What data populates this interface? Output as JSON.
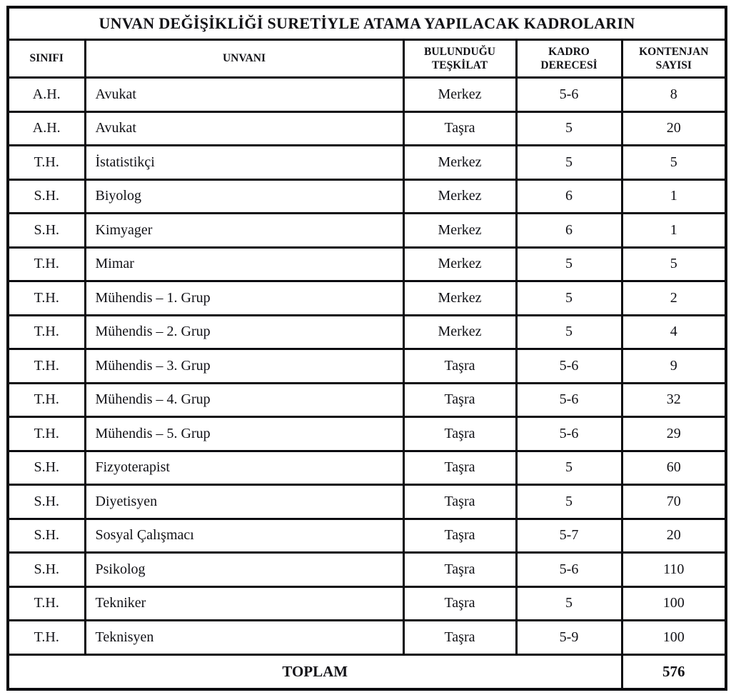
{
  "table": {
    "title": "UNVAN DEĞİŞİKLİĞİ SURETİYLE ATAMA YAPILACAK KADROLARIN",
    "columns": [
      "SINIFI",
      "UNVANI",
      "BULUNDUĞU\nTEŞKİLAT",
      "KADRO\nDERECESİ",
      "KONTENJAN\nSAYISI"
    ],
    "rows": [
      {
        "sinif": "A.H.",
        "unvan": "Avukat",
        "teskilat": "Merkez",
        "derece": "5-6",
        "kontenjan": "8"
      },
      {
        "sinif": "A.H.",
        "unvan": "Avukat",
        "teskilat": "Taşra",
        "derece": "5",
        "kontenjan": "20"
      },
      {
        "sinif": "T.H.",
        "unvan": "İstatistikçi",
        "teskilat": "Merkez",
        "derece": "5",
        "kontenjan": "5"
      },
      {
        "sinif": "S.H.",
        "unvan": "Biyolog",
        "teskilat": "Merkez",
        "derece": "6",
        "kontenjan": "1"
      },
      {
        "sinif": "S.H.",
        "unvan": "Kimyager",
        "teskilat": "Merkez",
        "derece": "6",
        "kontenjan": "1"
      },
      {
        "sinif": "T.H.",
        "unvan": "Mimar",
        "teskilat": "Merkez",
        "derece": "5",
        "kontenjan": "5"
      },
      {
        "sinif": "T.H.",
        "unvan": "Mühendis – 1. Grup",
        "teskilat": "Merkez",
        "derece": "5",
        "kontenjan": "2"
      },
      {
        "sinif": "T.H.",
        "unvan": "Mühendis – 2. Grup",
        "teskilat": "Merkez",
        "derece": "5",
        "kontenjan": "4"
      },
      {
        "sinif": "T.H.",
        "unvan": "Mühendis – 3. Grup",
        "teskilat": "Taşra",
        "derece": "5-6",
        "kontenjan": "9"
      },
      {
        "sinif": "T.H.",
        "unvan": "Mühendis – 4. Grup",
        "teskilat": "Taşra",
        "derece": "5-6",
        "kontenjan": "32"
      },
      {
        "sinif": "T.H.",
        "unvan": "Mühendis – 5. Grup",
        "teskilat": "Taşra",
        "derece": "5-6",
        "kontenjan": "29"
      },
      {
        "sinif": "S.H.",
        "unvan": "Fizyoterapist",
        "teskilat": "Taşra",
        "derece": "5",
        "kontenjan": "60"
      },
      {
        "sinif": "S.H.",
        "unvan": "Diyetisyen",
        "teskilat": "Taşra",
        "derece": "5",
        "kontenjan": "70"
      },
      {
        "sinif": "S.H.",
        "unvan": "Sosyal Çalışmacı",
        "teskilat": "Taşra",
        "derece": "5-7",
        "kontenjan": "20"
      },
      {
        "sinif": "S.H.",
        "unvan": "Psikolog",
        "teskilat": "Taşra",
        "derece": "5-6",
        "kontenjan": "110"
      },
      {
        "sinif": "T.H.",
        "unvan": "Tekniker",
        "teskilat": "Taşra",
        "derece": "5",
        "kontenjan": "100"
      },
      {
        "sinif": "T.H.",
        "unvan": "Teknisyen",
        "teskilat": "Taşra",
        "derece": "5-9",
        "kontenjan": "100"
      }
    ],
    "total_label": "TOPLAM",
    "total_value": "576"
  },
  "colors": {
    "border": "#0c0c10",
    "text": "#111116",
    "background": "#ffffff"
  }
}
